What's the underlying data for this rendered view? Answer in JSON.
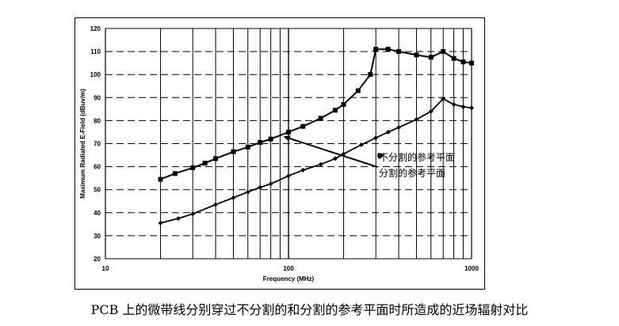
{
  "chart_data": {
    "type": "line",
    "title": "",
    "xlabel": "Frequency (MHz)",
    "ylabel": "Maximum Radiated E-Field (dBuv/m)",
    "xscale": "log",
    "xlim": [
      10,
      1000
    ],
    "ylim": [
      20,
      120
    ],
    "grid": true,
    "y_ticks": [
      20,
      30,
      40,
      50,
      60,
      70,
      80,
      90,
      100,
      110,
      120
    ],
    "x_tick_labels": [
      {
        "value": 10,
        "label": "10"
      },
      {
        "value": 100,
        "label": "100"
      },
      {
        "value": 1000,
        "label": "1000"
      }
    ],
    "series": [
      {
        "marker": "square",
        "x": [
          20,
          24,
          30,
          35,
          40,
          50,
          60,
          70,
          80,
          100,
          120,
          150,
          180,
          200,
          240,
          280,
          300,
          350,
          400,
          500,
          600,
          700,
          800,
          900,
          1000
        ],
        "y": [
          54.5,
          57,
          59.5,
          61.5,
          63.5,
          66.5,
          68.5,
          70.5,
          72,
          75,
          77.5,
          81,
          84.5,
          87,
          93,
          100,
          111,
          111,
          110,
          108.5,
          107.5,
          110,
          107,
          105.5,
          105
        ]
      },
      {
        "marker": "diamond",
        "x": [
          20,
          25,
          30,
          40,
          50,
          60,
          70,
          80,
          100,
          120,
          150,
          180,
          200,
          250,
          300,
          350,
          400,
          500,
          600,
          700,
          800,
          900,
          1000
        ],
        "y": [
          35.5,
          37.5,
          39.5,
          43.5,
          46.5,
          49,
          51,
          52.5,
          56,
          58.5,
          61,
          63.5,
          65.5,
          69.5,
          72.5,
          75,
          77,
          80.5,
          84,
          89.5,
          87,
          86,
          85.5
        ]
      }
    ],
    "annotations": [
      {
        "text": "不分割的参考平面",
        "arrow_to": {
          "x": 330,
          "y": 65
        }
      },
      {
        "text": "分割的参考平面",
        "arrow_to": {
          "x": 95,
          "y": 73
        }
      }
    ]
  },
  "caption": "PCB 上的微带线分别穿过不分割的和分割的参考平面时所造成的近场辐射对比"
}
